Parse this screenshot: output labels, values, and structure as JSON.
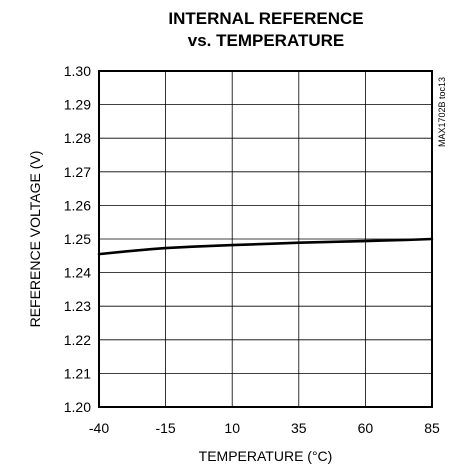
{
  "chart_data": {
    "type": "line",
    "title_line1": "INTERNAL REFERENCE",
    "title_line2": "vs. TEMPERATURE",
    "xlabel": "TEMPERATURE (°C)",
    "ylabel": "REFERENCE VOLTAGE (V)",
    "side_note": "MAX1702B toc13",
    "xlim": [
      -40,
      85
    ],
    "ylim": [
      1.2,
      1.3
    ],
    "x_ticks": [
      "-40",
      "-15",
      "10",
      "35",
      "60",
      "85"
    ],
    "y_ticks": [
      "1.20",
      "1.21",
      "1.22",
      "1.23",
      "1.24",
      "1.25",
      "1.26",
      "1.27",
      "1.28",
      "1.29",
      "1.30"
    ],
    "grid": true,
    "series": [
      {
        "x": [
          -40,
          -30,
          -20,
          -15,
          -5,
          10,
          25,
          35,
          50,
          60,
          75,
          85
        ],
        "y": [
          1.2455,
          1.2463,
          1.247,
          1.2473,
          1.2477,
          1.2482,
          1.2486,
          1.2489,
          1.2492,
          1.2494,
          1.2497,
          1.25
        ]
      }
    ]
  }
}
